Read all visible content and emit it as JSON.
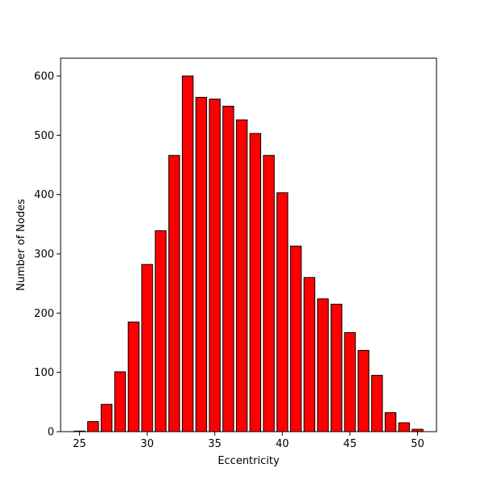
{
  "chart_data": {
    "type": "bar",
    "xlabel": "Eccentricity",
    "ylabel": "Number of Nodes",
    "bar_color": "#ff0000",
    "edge_color": "#000000",
    "xlim": [
      23.6,
      51.4
    ],
    "ylim": [
      0,
      630
    ],
    "xticks": [
      25,
      30,
      35,
      40,
      45,
      50
    ],
    "yticks": [
      0,
      100,
      200,
      300,
      400,
      500,
      600
    ],
    "grid": false,
    "x": [
      25,
      26,
      27,
      28,
      29,
      30,
      31,
      32,
      33,
      34,
      35,
      36,
      37,
      38,
      39,
      40,
      41,
      42,
      43,
      44,
      45,
      46,
      47,
      48,
      49,
      50
    ],
    "values": [
      1,
      17,
      46,
      101,
      185,
      282,
      339,
      466,
      600,
      564,
      561,
      549,
      526,
      503,
      466,
      403,
      313,
      260,
      224,
      215,
      167,
      137,
      95,
      32,
      15,
      4
    ]
  }
}
